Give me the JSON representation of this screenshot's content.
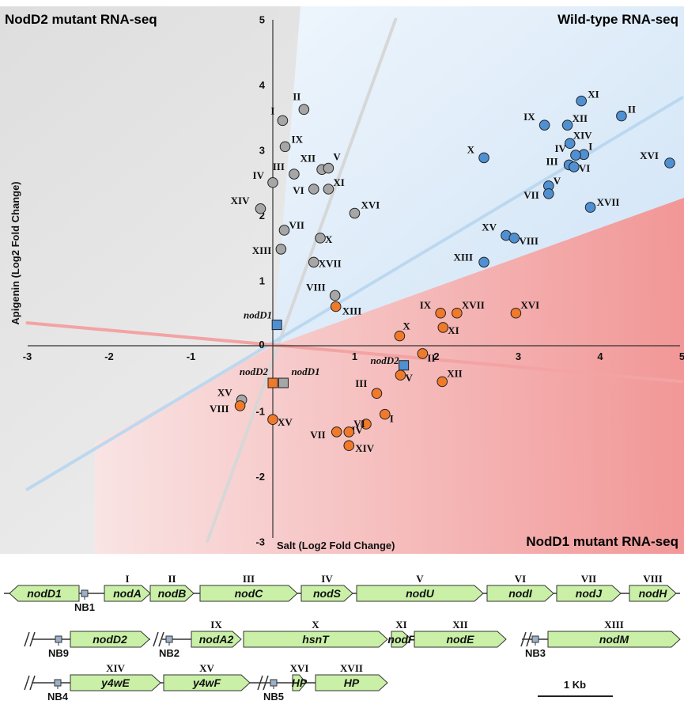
{
  "regions": {
    "nodd2": {
      "label": "NodD2 mutant RNA-seq",
      "color": "#b9b9b9"
    },
    "wild": {
      "label": "Wild-type RNA-seq",
      "color": "#3aa0e0"
    },
    "nodd1": {
      "label": "NodD1 mutant RNA-seq",
      "color": "#f07b7b"
    }
  },
  "colors": {
    "gray": "#a6a6a6",
    "blue": "#4f90d3",
    "orange": "#f07a2a"
  },
  "chart_data": {
    "type": "scatter",
    "xlabel": "Salt (Log2 Fold Change)",
    "ylabel": "Apigenin (Log2 Fold Change)",
    "xlim": [
      -3,
      5
    ],
    "ylim": [
      -3,
      5
    ],
    "xticks": [
      "-3",
      "-2",
      "-1",
      "0",
      "1",
      "2",
      "3",
      "4",
      "5"
    ],
    "yticks": [
      "-3",
      "-2",
      "-1",
      "0",
      "1",
      "2",
      "3",
      "4",
      "5"
    ],
    "grid": false,
    "trend_lines": [
      {
        "series": "gray",
        "x": [
          -0.8,
          1.5
        ],
        "y": [
          -3,
          5
        ]
      },
      {
        "series": "blue",
        "x": [
          -3,
          5
        ],
        "y": [
          -2.2,
          3.8
        ]
      },
      {
        "series": "red",
        "x": [
          -3,
          5
        ],
        "y": [
          0.35,
          -0.55
        ]
      }
    ],
    "series": [
      {
        "color": "gray",
        "points": [
          {
            "label": "I",
            "x": 0.12,
            "y": 3.45
          },
          {
            "label": "II",
            "x": 0.38,
            "y": 3.62
          },
          {
            "label": "IX",
            "x": 0.15,
            "y": 3.05
          },
          {
            "label": "XII",
            "x": 0.6,
            "y": 2.7
          },
          {
            "label": "V",
            "x": 0.68,
            "y": 2.72
          },
          {
            "label": "III",
            "x": 0.26,
            "y": 2.63
          },
          {
            "label": "IV",
            "x": 0.0,
            "y": 2.5
          },
          {
            "label": "VI",
            "x": 0.5,
            "y": 2.4
          },
          {
            "label": "XI",
            "x": 0.68,
            "y": 2.4
          },
          {
            "label": "XIV",
            "x": -0.15,
            "y": 2.1
          },
          {
            "label": "XVI",
            "x": 1.0,
            "y": 2.03
          },
          {
            "label": "VII",
            "x": 0.14,
            "y": 1.77
          },
          {
            "label": "X",
            "x": 0.58,
            "y": 1.65
          },
          {
            "label": "XIII",
            "x": 0.1,
            "y": 1.48
          },
          {
            "label": "XVII",
            "x": 0.5,
            "y": 1.28
          },
          {
            "label": "VIII",
            "x": 0.76,
            "y": 0.77
          },
          {
            "label": "XV",
            "x": -0.38,
            "y": -0.83
          }
        ]
      },
      {
        "color": "blue",
        "points": [
          {
            "label": "XI",
            "x": 3.77,
            "y": 3.75
          },
          {
            "label": "II",
            "x": 4.26,
            "y": 3.52
          },
          {
            "label": "IX",
            "x": 3.32,
            "y": 3.38
          },
          {
            "label": "XII",
            "x": 3.6,
            "y": 3.38
          },
          {
            "label": "XIV",
            "x": 3.63,
            "y": 3.1
          },
          {
            "label": "I",
            "x": 3.8,
            "y": 2.93
          },
          {
            "label": "IV",
            "x": 3.7,
            "y": 2.92
          },
          {
            "label": "X",
            "x": 2.58,
            "y": 2.88
          },
          {
            "label": "XVI",
            "x": 4.85,
            "y": 2.8
          },
          {
            "label": "III",
            "x": 3.62,
            "y": 2.77
          },
          {
            "label": "VI",
            "x": 3.68,
            "y": 2.74
          },
          {
            "label": "V",
            "x": 3.37,
            "y": 2.45
          },
          {
            "label": "VII",
            "x": 3.37,
            "y": 2.33
          },
          {
            "label": "XVII",
            "x": 3.88,
            "y": 2.12
          },
          {
            "label": "XV",
            "x": 2.85,
            "y": 1.69
          },
          {
            "label": "VIII",
            "x": 2.95,
            "y": 1.65
          },
          {
            "label": "XIII",
            "x": 2.58,
            "y": 1.28
          }
        ]
      },
      {
        "color": "orange",
        "points": [
          {
            "label": "XIII",
            "x": 0.77,
            "y": 0.6
          },
          {
            "label": "IX",
            "x": 2.05,
            "y": 0.5
          },
          {
            "label": "XVII",
            "x": 2.25,
            "y": 0.5
          },
          {
            "label": "XVI",
            "x": 2.97,
            "y": 0.5
          },
          {
            "label": "XI",
            "x": 2.08,
            "y": 0.28
          },
          {
            "label": "X",
            "x": 1.55,
            "y": 0.15
          },
          {
            "label": "II",
            "x": 1.83,
            "y": -0.12
          },
          {
            "label": "V",
            "x": 1.56,
            "y": -0.45
          },
          {
            "label": "XII",
            "x": 2.07,
            "y": -0.55
          },
          {
            "label": "III",
            "x": 1.27,
            "y": -0.73
          },
          {
            "label": "VIII",
            "x": -0.4,
            "y": -0.92
          },
          {
            "label": "I",
            "x": 1.37,
            "y": -1.05
          },
          {
            "label": "XV",
            "x": 0.0,
            "y": -1.13
          },
          {
            "label": "IV",
            "x": 1.14,
            "y": -1.2
          },
          {
            "label": "VI",
            "x": 0.93,
            "y": -1.32
          },
          {
            "label": "VII",
            "x": 0.78,
            "y": -1.32
          },
          {
            "label": "XIV",
            "x": 0.93,
            "y": -1.53
          }
        ]
      }
    ],
    "squares": [
      {
        "label": "nodD1",
        "color": "blue",
        "x": 0.05,
        "y": 0.32
      },
      {
        "label": "nodD2",
        "color": "blue",
        "x": 1.6,
        "y": -0.3
      },
      {
        "label": "nodD2",
        "color": "orange",
        "x": 0.0,
        "y": -0.57
      },
      {
        "label": "nodD1",
        "color": "gray",
        "x": 0.13,
        "y": -0.57
      }
    ]
  },
  "gene_map": {
    "scale_label": "1 Kb",
    "rows": [
      {
        "genes": [
          {
            "name": "nodD1",
            "roman": "",
            "dir": "left"
          },
          {
            "name": "nodA",
            "roman": "I",
            "dir": "right"
          },
          {
            "name": "nodB",
            "roman": "II",
            "dir": "right"
          },
          {
            "name": "nodC",
            "roman": "III",
            "dir": "right"
          },
          {
            "name": "nodS",
            "roman": "IV",
            "dir": "right"
          },
          {
            "name": "nodU",
            "roman": "V",
            "dir": "right"
          },
          {
            "name": "nodI",
            "roman": "VI",
            "dir": "right"
          },
          {
            "name": "nodJ",
            "roman": "VII",
            "dir": "right"
          },
          {
            "name": "nodH",
            "roman": "VIII",
            "dir": "right"
          }
        ],
        "boxes": [
          "NB1"
        ]
      },
      {
        "genes": [
          {
            "name": "nodD2",
            "roman": "",
            "dir": "right"
          },
          {
            "name": "nodA2",
            "roman": "IX",
            "dir": "right"
          },
          {
            "name": "hsnT",
            "roman": "X",
            "dir": "right"
          },
          {
            "name": "nodF",
            "roman": "XI",
            "dir": "right"
          },
          {
            "name": "nodE",
            "roman": "XII",
            "dir": "right"
          },
          {
            "name": "nodM",
            "roman": "XIII",
            "dir": "right"
          }
        ],
        "boxes": [
          "NB9",
          "NB2",
          "NB3"
        ]
      },
      {
        "genes": [
          {
            "name": "y4wE",
            "roman": "XIV",
            "dir": "right"
          },
          {
            "name": "y4wF",
            "roman": "XV",
            "dir": "right"
          },
          {
            "name": "HP",
            "roman": "XVI",
            "dir": "right"
          },
          {
            "name": "HP",
            "roman": "XVII",
            "dir": "right"
          }
        ],
        "boxes": [
          "NB4",
          "NB5"
        ]
      }
    ]
  }
}
